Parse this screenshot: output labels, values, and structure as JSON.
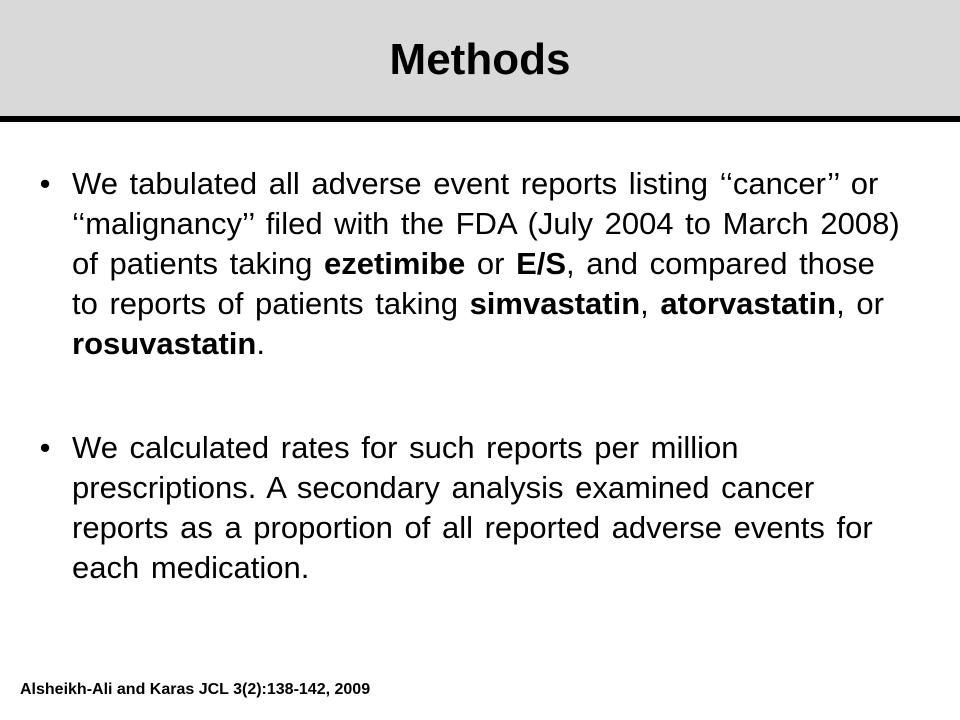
{
  "slide": {
    "title": "Methods",
    "bullet_char": "•",
    "bullets": [
      {
        "runs": [
          {
            "text": "We tabulated all adverse event reports listing ‘‘cancer’’ or ‘‘malignancy’’ filed with the FDA (July 2004 to March 2008) of patients taking ",
            "bold": false
          },
          {
            "text": "ezetimibe",
            "bold": true
          },
          {
            "text": " or ",
            "bold": false
          },
          {
            "text": "E/S",
            "bold": true
          },
          {
            "text": ", and compared those to reports of patients taking ",
            "bold": false
          },
          {
            "text": "simvastatin",
            "bold": true
          },
          {
            "text": ", ",
            "bold": false
          },
          {
            "text": "atorvastatin",
            "bold": true
          },
          {
            "text": ", or ",
            "bold": false
          },
          {
            "text": "rosuvastatin",
            "bold": true
          },
          {
            "text": ".",
            "bold": false
          }
        ]
      },
      {
        "runs": [
          {
            "text": "We calculated rates for such reports per million prescriptions. A secondary analysis examined cancer reports as a proportion of all reported adverse events for each medication.",
            "bold": false
          }
        ]
      }
    ],
    "citation": "Alsheikh-Ali and Karas JCL 3(2):138-142, 2009"
  },
  "colors": {
    "title_band": "#d9d9d9",
    "title_rule": "#000000",
    "text": "#000000",
    "background": "#ffffff"
  }
}
